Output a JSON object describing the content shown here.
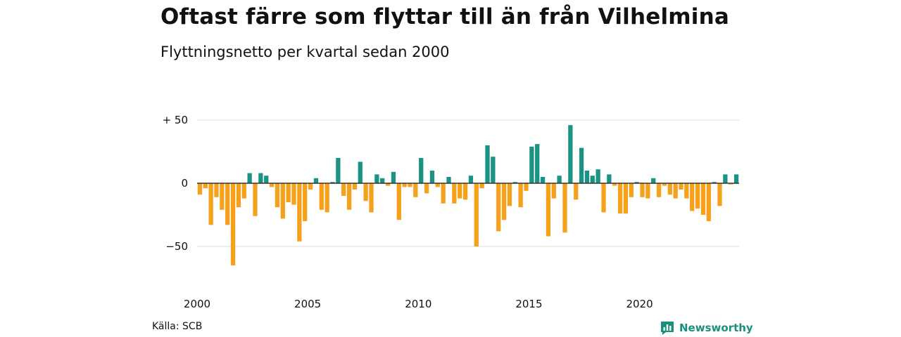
{
  "title": "Oftast färre som flyttar till än från Vilhelmina",
  "subtitle": "Flyttningsnetto per kvartal sedan 2000",
  "source": "Källa: SCB",
  "brand": {
    "name": "Newsworthy",
    "icon": "newsworthy-logo-icon"
  },
  "colors": {
    "positive": "#1a9385",
    "negative": "#f5a11c",
    "grid": "#dddddd",
    "zero_line": "#333333"
  },
  "chart_data": {
    "type": "bar",
    "title": "Oftast färre som flyttar till än från Vilhelmina",
    "subtitle": "Flyttningsnetto per kvartal sedan 2000",
    "xlabel": "",
    "ylabel": "",
    "x_tick_labels": [
      "2000",
      "2005",
      "2010",
      "2015",
      "2020"
    ],
    "y_ticks": [
      {
        "value": 50,
        "label": "+ 50"
      },
      {
        "value": 0,
        "label": "0"
      },
      {
        "value": -50,
        "label": "−50"
      }
    ],
    "ylim": [
      -80,
      50
    ],
    "grid": true,
    "legend": "none",
    "series": [
      {
        "start_year": 2000,
        "periods_per_year": 4,
        "values": [
          -9,
          -4,
          -33,
          -11,
          -21,
          -33,
          -65,
          -19,
          -12,
          8,
          -26,
          8,
          6,
          -3,
          -19,
          -28,
          -15,
          -17,
          -46,
          -30,
          -5,
          4,
          -21,
          -23,
          1,
          20,
          -10,
          -21,
          -5,
          17,
          -14,
          -23,
          7,
          4,
          -2,
          9,
          -29,
          -3,
          -3,
          -11,
          20,
          -8,
          10,
          -3,
          -16,
          5,
          -16,
          -12,
          -13,
          6,
          -50,
          -4,
          30,
          21,
          -38,
          -29,
          -18,
          1,
          -19,
          -6,
          29,
          31,
          5,
          -42,
          -12,
          6,
          -39,
          46,
          -13,
          28,
          10,
          6,
          11,
          -23,
          7,
          -2,
          -24,
          -24,
          -11,
          1,
          -11,
          -12,
          4,
          -11,
          -2,
          -9,
          -12,
          -5,
          -12,
          -22,
          -20,
          -25,
          -30,
          1,
          -18,
          7,
          -1,
          7
        ]
      }
    ]
  }
}
